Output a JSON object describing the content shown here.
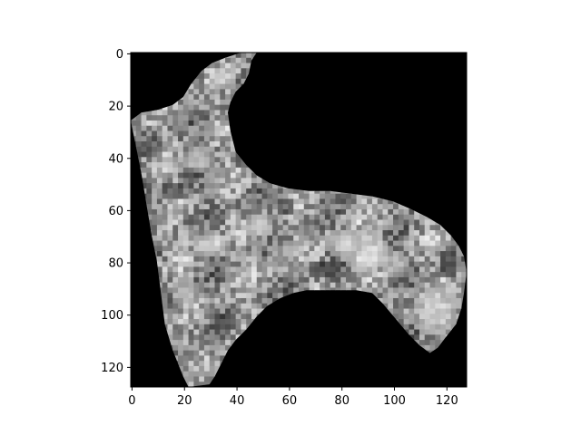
{
  "chart_data": {
    "type": "heatmap",
    "colormap": "gray",
    "background_color": "#000000",
    "image_size": [
      128,
      128
    ],
    "xlim": [
      0,
      127
    ],
    "ylim": [
      127,
      0
    ],
    "x_ticks": [
      0,
      20,
      40,
      60,
      80,
      100,
      120
    ],
    "x_tick_labels": [
      "0",
      "20",
      "40",
      "60",
      "80",
      "100",
      "120"
    ],
    "y_ticks": [
      0,
      20,
      40,
      60,
      80,
      100,
      120
    ],
    "y_tick_labels": [
      "0",
      "20",
      "40",
      "60",
      "80",
      "100",
      "120"
    ],
    "mask_outline": [
      [
        48,
        0
      ],
      [
        46,
        3
      ],
      [
        45,
        8
      ],
      [
        43,
        12
      ],
      [
        40,
        15
      ],
      [
        38,
        19
      ],
      [
        37,
        23
      ],
      [
        38,
        30
      ],
      [
        40,
        38
      ],
      [
        44,
        43
      ],
      [
        48,
        47
      ],
      [
        53,
        50
      ],
      [
        60,
        52
      ],
      [
        68,
        53
      ],
      [
        76,
        53
      ],
      [
        84,
        54
      ],
      [
        92,
        55
      ],
      [
        100,
        57
      ],
      [
        107,
        60
      ],
      [
        113,
        63
      ],
      [
        118,
        66
      ],
      [
        122,
        70
      ],
      [
        125,
        74
      ],
      [
        127,
        78
      ],
      [
        128,
        84
      ],
      [
        127,
        92
      ],
      [
        126,
        98
      ],
      [
        124,
        104
      ],
      [
        120,
        109
      ],
      [
        117,
        113
      ],
      [
        114,
        115
      ],
      [
        110,
        112
      ],
      [
        106,
        108
      ],
      [
        101,
        102
      ],
      [
        96,
        96
      ],
      [
        92,
        92
      ],
      [
        86,
        91
      ],
      [
        80,
        91
      ],
      [
        73,
        91
      ],
      [
        67,
        91
      ],
      [
        62,
        92
      ],
      [
        57,
        94
      ],
      [
        52,
        97
      ],
      [
        48,
        101
      ],
      [
        44,
        106
      ],
      [
        40,
        110
      ],
      [
        37,
        114
      ],
      [
        35,
        118
      ],
      [
        32,
        124
      ],
      [
        30,
        127
      ],
      [
        22,
        128
      ],
      [
        20,
        124
      ],
      [
        16,
        114
      ],
      [
        13,
        104
      ],
      [
        12,
        96
      ],
      [
        11,
        88
      ],
      [
        10,
        80
      ],
      [
        8,
        70
      ],
      [
        6,
        58
      ],
      [
        4,
        46
      ],
      [
        2,
        36
      ],
      [
        0,
        26
      ],
      [
        4,
        23
      ],
      [
        10,
        22
      ],
      [
        16,
        20
      ],
      [
        20,
        17
      ],
      [
        23,
        12
      ],
      [
        27,
        7
      ],
      [
        31,
        4
      ],
      [
        36,
        2
      ],
      [
        42,
        0
      ]
    ],
    "bright_regions": [
      {
        "x": 88,
        "y": 75,
        "rx": 10,
        "ry": 8,
        "level": 0.9
      },
      {
        "x": 115,
        "y": 98,
        "rx": 8,
        "ry": 10,
        "level": 0.85
      },
      {
        "x": 80,
        "y": 72,
        "rx": 7,
        "ry": 5,
        "level": 0.8
      },
      {
        "x": 30,
        "y": 72,
        "rx": 6,
        "ry": 5,
        "level": 0.85
      },
      {
        "x": 25,
        "y": 40,
        "rx": 6,
        "ry": 5,
        "level": 0.8
      },
      {
        "x": 48,
        "y": 65,
        "rx": 6,
        "ry": 5,
        "level": 0.8
      },
      {
        "x": 20,
        "y": 90,
        "rx": 5,
        "ry": 6,
        "level": 0.75
      },
      {
        "x": 35,
        "y": 8,
        "rx": 5,
        "ry": 4,
        "level": 0.8
      },
      {
        "x": 60,
        "y": 75,
        "rx": 6,
        "ry": 4,
        "level": 0.7
      },
      {
        "x": 100,
        "y": 80,
        "rx": 6,
        "ry": 5,
        "level": 0.75
      }
    ],
    "dark_regions": [
      {
        "x": 15,
        "y": 52,
        "rx": 5,
        "ry": 4,
        "level": 0.2
      },
      {
        "x": 42,
        "y": 40,
        "rx": 4,
        "ry": 4,
        "level": 0.2
      },
      {
        "x": 72,
        "y": 82,
        "rx": 6,
        "ry": 3,
        "level": 0.15
      },
      {
        "x": 120,
        "y": 80,
        "rx": 4,
        "ry": 5,
        "level": 0.15
      },
      {
        "x": 35,
        "y": 102,
        "rx": 4,
        "ry": 4,
        "level": 0.2
      },
      {
        "x": 8,
        "y": 35,
        "rx": 3,
        "ry": 4,
        "level": 0.25
      },
      {
        "x": 58,
        "y": 58,
        "rx": 4,
        "ry": 3,
        "level": 0.2
      }
    ]
  }
}
